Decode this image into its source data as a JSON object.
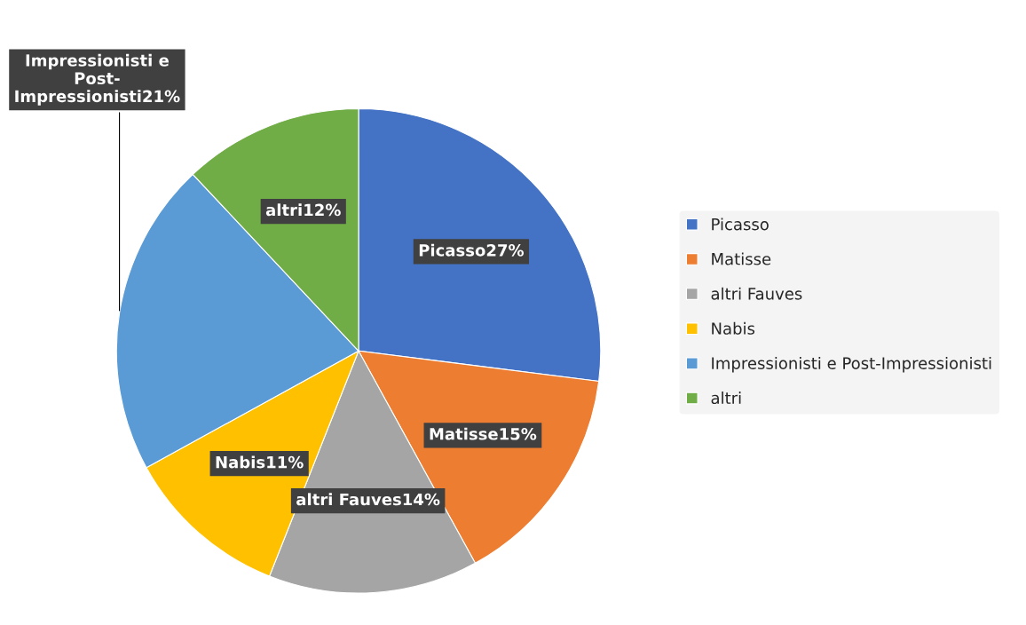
{
  "chart_data": {
    "type": "pie",
    "categories": [
      "Picasso",
      "Matisse",
      "altri Fauves",
      "Nabis",
      "Impressionisti e Post-Impressionisti",
      "altri"
    ],
    "values": [
      27,
      15,
      14,
      11,
      21,
      12
    ],
    "colors": [
      "#4472c4",
      "#ed7d31",
      "#a5a5a5",
      "#ffc000",
      "#5b9bd5",
      "#70ad47"
    ],
    "value_labels": [
      "Picasso27%",
      "Matisse15%",
      "altri Fauves14%",
      "Nabis11%",
      "Impressionisti e\nPost-\nImpressionisti21%",
      "altri12%"
    ],
    "legend": "right"
  }
}
